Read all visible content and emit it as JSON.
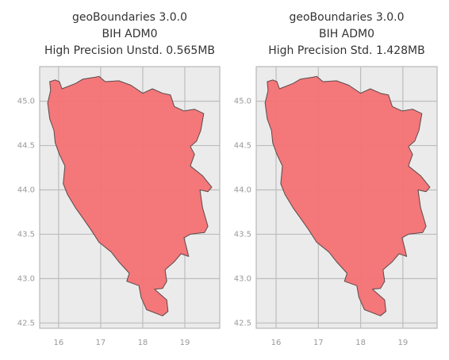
{
  "chart_data": [
    {
      "type": "map",
      "title": [
        "geoBoundaries 3.0.0",
        "BIH ADM0",
        "High Precision Unstd. 0.565MB"
      ],
      "xlim": [
        15.55,
        19.83
      ],
      "ylim": [
        42.44,
        45.39
      ],
      "xticks": [
        16,
        17,
        18,
        19
      ],
      "yticks": [
        {
          "value": 42.5,
          "label": "42.5"
        },
        {
          "value": 43,
          "label": "43.0"
        },
        {
          "value": 43.5,
          "label": "43.5"
        },
        {
          "value": 44,
          "label": "44.0"
        },
        {
          "value": 44.5,
          "label": "44.5"
        },
        {
          "value": 45,
          "label": "45.0"
        }
      ],
      "grid": true,
      "color": "#f47174",
      "boundary": {
        "lon": [
          15.79,
          15.92,
          16.02,
          16.08,
          16.4,
          16.58,
          16.87,
          16.96,
          17.11,
          17.43,
          17.72,
          18.0,
          18.23,
          18.47,
          18.66,
          18.75,
          18.98,
          19.23,
          19.45,
          19.38,
          19.28,
          19.13,
          19.23,
          19.13,
          19.42,
          19.64,
          19.55,
          19.36,
          19.42,
          19.55,
          19.47,
          19.13,
          18.98,
          19.04,
          19.09,
          18.91,
          18.75,
          18.53,
          18.57,
          18.47,
          18.28,
          18.57,
          18.6,
          18.47,
          18.09,
          17.96,
          17.91,
          17.62,
          17.68,
          17.43,
          17.25,
          16.96,
          16.77,
          16.58,
          16.4,
          16.21,
          16.11,
          16.15,
          16.02,
          15.92,
          15.89,
          15.79,
          15.74,
          15.81
        ],
        "lat": [
          45.22,
          45.24,
          45.22,
          45.14,
          45.2,
          45.25,
          45.27,
          45.28,
          45.22,
          45.23,
          45.18,
          45.09,
          45.14,
          45.09,
          45.07,
          44.94,
          44.89,
          44.91,
          44.86,
          44.67,
          44.55,
          44.49,
          44.4,
          44.27,
          44.16,
          44.03,
          43.98,
          44.0,
          43.8,
          43.59,
          43.52,
          43.5,
          43.46,
          43.35,
          43.25,
          43.28,
          43.19,
          43.1,
          42.97,
          42.89,
          42.88,
          42.76,
          42.63,
          42.58,
          42.65,
          42.79,
          42.92,
          42.97,
          43.06,
          43.19,
          43.3,
          43.41,
          43.55,
          43.68,
          43.8,
          43.95,
          44.07,
          44.27,
          44.4,
          44.53,
          44.67,
          44.8,
          44.98,
          45.12
        ]
      }
    },
    {
      "type": "map",
      "title": [
        "geoBoundaries 3.0.0",
        "BIH ADM0",
        "High Precision Std. 1.428MB"
      ],
      "xlim": [
        15.53,
        19.81
      ],
      "ylim": [
        42.44,
        45.39
      ],
      "xticks": [
        16,
        17,
        18,
        19
      ],
      "yticks": [
        {
          "value": 42.5,
          "label": "42.5"
        },
        {
          "value": 43,
          "label": "43.0"
        },
        {
          "value": 43.5,
          "label": "43.5"
        },
        {
          "value": 44,
          "label": "44.0"
        },
        {
          "value": 44.5,
          "label": "44.5"
        },
        {
          "value": 45,
          "label": "45.0"
        }
      ],
      "grid": true,
      "color": "#f47174",
      "boundary": {
        "lon": [
          15.79,
          15.92,
          16.02,
          16.08,
          16.4,
          16.58,
          16.87,
          16.96,
          17.11,
          17.43,
          17.72,
          18.0,
          18.23,
          18.47,
          18.66,
          18.75,
          18.98,
          19.23,
          19.45,
          19.38,
          19.28,
          19.13,
          19.23,
          19.13,
          19.42,
          19.64,
          19.55,
          19.36,
          19.42,
          19.55,
          19.47,
          19.13,
          18.98,
          19.04,
          19.09,
          18.91,
          18.75,
          18.53,
          18.57,
          18.47,
          18.28,
          18.57,
          18.6,
          18.47,
          18.09,
          17.96,
          17.91,
          17.62,
          17.68,
          17.43,
          17.25,
          16.96,
          16.77,
          16.58,
          16.4,
          16.21,
          16.11,
          16.15,
          16.02,
          15.92,
          15.89,
          15.79,
          15.74,
          15.81
        ],
        "lat": [
          45.22,
          45.24,
          45.22,
          45.14,
          45.2,
          45.25,
          45.27,
          45.28,
          45.22,
          45.23,
          45.18,
          45.09,
          45.14,
          45.09,
          45.07,
          44.94,
          44.89,
          44.91,
          44.86,
          44.67,
          44.55,
          44.49,
          44.4,
          44.27,
          44.16,
          44.03,
          43.98,
          44.0,
          43.8,
          43.59,
          43.52,
          43.5,
          43.46,
          43.35,
          43.25,
          43.28,
          43.19,
          43.1,
          42.97,
          42.89,
          42.88,
          42.76,
          42.63,
          42.58,
          42.65,
          42.79,
          42.92,
          42.97,
          43.06,
          43.19,
          43.3,
          43.41,
          43.55,
          43.68,
          43.8,
          43.95,
          44.07,
          44.27,
          44.4,
          44.53,
          44.67,
          44.8,
          44.98,
          45.12
        ]
      }
    }
  ]
}
